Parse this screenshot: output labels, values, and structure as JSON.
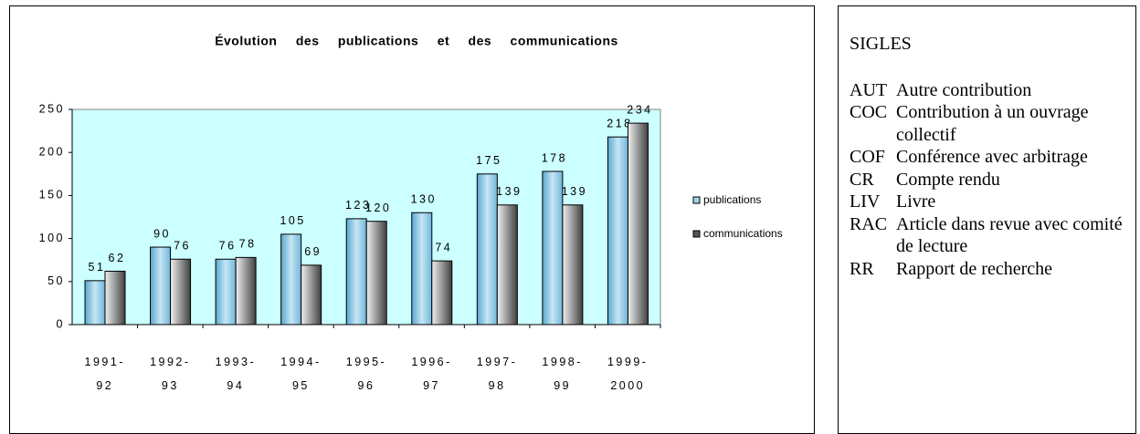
{
  "chart_data": {
    "type": "bar",
    "title": "Évolution des publications et des communications",
    "categories": [
      "1991-92",
      "1992-93",
      "1993-94",
      "1994-95",
      "1995-96",
      "1996-97",
      "1997-98",
      "1998-99",
      "1999-2000"
    ],
    "series": [
      {
        "name": "publications",
        "color": "#9fd3e8",
        "values": [
          51,
          90,
          76,
          105,
          123,
          130,
          175,
          178,
          218
        ]
      },
      {
        "name": "communications",
        "color": "#808080",
        "values": [
          62,
          76,
          78,
          69,
          120,
          74,
          139,
          139,
          234
        ]
      }
    ],
    "ylim": [
      0,
      250
    ],
    "yticks": [
      0,
      50,
      100,
      150,
      200,
      250
    ],
    "legend": "right",
    "background": "#ccffff"
  },
  "sidebar": {
    "title": "SIGLES",
    "items": [
      {
        "code": "AUT",
        "label": "Autre contribution"
      },
      {
        "code": "COC",
        "label": "Contribution à un ouvrage collectif"
      },
      {
        "code": "COF",
        "label": "Conférence avec arbitrage"
      },
      {
        "code": "CR",
        "label": "Compte rendu"
      },
      {
        "code": "LIV",
        "label": "Livre"
      },
      {
        "code": "RAC",
        "label": "Article dans revue avec comité de lecture"
      },
      {
        "code": "RR",
        "label": "Rapport de recherche"
      }
    ]
  }
}
